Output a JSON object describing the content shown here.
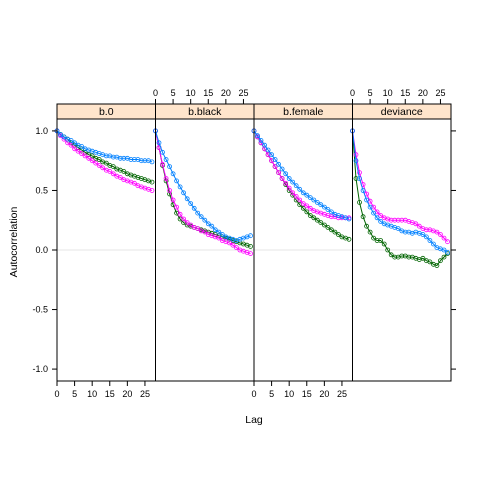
{
  "chart_data": {
    "type": "line",
    "xlabel": "Lag",
    "ylabel": "Autocorrelation",
    "xlim": [
      0,
      28
    ],
    "ylim": [
      -1.1,
      1.1
    ],
    "x_ticks": [
      0,
      5,
      10,
      15,
      20,
      25
    ],
    "y_ticks": [
      -1.0,
      -0.5,
      0.0,
      0.5,
      1.0
    ],
    "y_tick_labels": [
      "-1.0",
      "-0.5",
      "0.0",
      "0.5",
      "1.0"
    ],
    "zero_reference_line": true,
    "strip_color": "#ffe5cc",
    "series_colors": [
      "#0080ff",
      "#ff00ff",
      "#006400"
    ],
    "marker": "open-circle",
    "lags": [
      0,
      1,
      2,
      3,
      4,
      5,
      6,
      7,
      8,
      9,
      10,
      11,
      12,
      13,
      14,
      15,
      16,
      17,
      18,
      19,
      20,
      21,
      22,
      23,
      24,
      25,
      26,
      27
    ],
    "panels": [
      {
        "name": "b.0",
        "series": [
          {
            "values": [
              1.0,
              0.97,
              0.95,
              0.93,
              0.92,
              0.9,
              0.88,
              0.87,
              0.85,
              0.84,
              0.83,
              0.82,
              0.81,
              0.8,
              0.79,
              0.79,
              0.78,
              0.78,
              0.77,
              0.77,
              0.77,
              0.76,
              0.76,
              0.76,
              0.75,
              0.75,
              0.75,
              0.74
            ]
          },
          {
            "values": [
              1.0,
              0.96,
              0.93,
              0.9,
              0.88,
              0.85,
              0.83,
              0.81,
              0.79,
              0.77,
              0.75,
              0.73,
              0.71,
              0.69,
              0.67,
              0.66,
              0.64,
              0.62,
              0.61,
              0.59,
              0.58,
              0.57,
              0.56,
              0.54,
              0.53,
              0.52,
              0.51,
              0.5
            ]
          },
          {
            "values": [
              1.0,
              0.97,
              0.95,
              0.93,
              0.9,
              0.88,
              0.86,
              0.84,
              0.82,
              0.8,
              0.79,
              0.77,
              0.76,
              0.74,
              0.73,
              0.71,
              0.7,
              0.68,
              0.67,
              0.66,
              0.64,
              0.63,
              0.62,
              0.61,
              0.6,
              0.59,
              0.58,
              0.57
            ]
          }
        ]
      },
      {
        "name": "b.black",
        "series": [
          {
            "values": [
              1.0,
              0.9,
              0.82,
              0.76,
              0.7,
              0.64,
              0.58,
              0.53,
              0.48,
              0.43,
              0.39,
              0.35,
              0.31,
              0.28,
              0.25,
              0.22,
              0.2,
              0.17,
              0.15,
              0.13,
              0.11,
              0.1,
              0.09,
              0.08,
              0.09,
              0.1,
              0.11,
              0.12
            ]
          },
          {
            "values": [
              1.0,
              0.86,
              0.72,
              0.6,
              0.5,
              0.42,
              0.36,
              0.3,
              0.26,
              0.23,
              0.21,
              0.19,
              0.18,
              0.16,
              0.15,
              0.13,
              0.12,
              0.11,
              0.1,
              0.08,
              0.07,
              0.06,
              0.04,
              0.02,
              0.0,
              -0.01,
              -0.02,
              -0.03
            ]
          },
          {
            "values": [
              1.0,
              0.86,
              0.71,
              0.58,
              0.47,
              0.38,
              0.31,
              0.26,
              0.23,
              0.21,
              0.2,
              0.19,
              0.18,
              0.17,
              0.16,
              0.15,
              0.14,
              0.13,
              0.12,
              0.11,
              0.1,
              0.09,
              0.08,
              0.07,
              0.06,
              0.05,
              0.04,
              0.03
            ]
          }
        ]
      },
      {
        "name": "b.female",
        "series": [
          {
            "values": [
              1.0,
              0.96,
              0.92,
              0.88,
              0.84,
              0.8,
              0.76,
              0.72,
              0.68,
              0.64,
              0.6,
              0.57,
              0.54,
              0.51,
              0.48,
              0.46,
              0.44,
              0.42,
              0.4,
              0.38,
              0.36,
              0.34,
              0.32,
              0.3,
              0.29,
              0.28,
              0.27,
              0.26
            ]
          },
          {
            "values": [
              1.0,
              0.95,
              0.9,
              0.85,
              0.8,
              0.75,
              0.7,
              0.65,
              0.6,
              0.56,
              0.52,
              0.48,
              0.45,
              0.42,
              0.39,
              0.37,
              0.35,
              0.33,
              0.32,
              0.31,
              0.3,
              0.29,
              0.28,
              0.28,
              0.27,
              0.27,
              0.27,
              0.27
            ]
          },
          {
            "values": [
              1.0,
              0.95,
              0.9,
              0.85,
              0.8,
              0.75,
              0.7,
              0.65,
              0.6,
              0.55,
              0.5,
              0.46,
              0.42,
              0.38,
              0.35,
              0.32,
              0.29,
              0.27,
              0.25,
              0.23,
              0.21,
              0.19,
              0.17,
              0.15,
              0.13,
              0.11,
              0.1,
              0.09
            ]
          }
        ]
      },
      {
        "name": "deviance",
        "series": [
          {
            "values": [
              1.0,
              0.75,
              0.6,
              0.5,
              0.42,
              0.36,
              0.31,
              0.27,
              0.24,
              0.22,
              0.21,
              0.2,
              0.19,
              0.18,
              0.16,
              0.15,
              0.15,
              0.14,
              0.15,
              0.14,
              0.13,
              0.11,
              0.08,
              0.05,
              0.02,
              0.01,
              0.0,
              -0.02
            ]
          },
          {
            "values": [
              1.0,
              0.8,
              0.65,
              0.55,
              0.47,
              0.41,
              0.36,
              0.32,
              0.29,
              0.27,
              0.26,
              0.25,
              0.25,
              0.25,
              0.25,
              0.25,
              0.24,
              0.23,
              0.22,
              0.2,
              0.18,
              0.17,
              0.17,
              0.16,
              0.15,
              0.13,
              0.1,
              0.07
            ]
          },
          {
            "values": [
              1.0,
              0.6,
              0.4,
              0.28,
              0.2,
              0.15,
              0.1,
              0.08,
              0.08,
              0.05,
              0.0,
              -0.04,
              -0.06,
              -0.06,
              -0.05,
              -0.05,
              -0.06,
              -0.06,
              -0.07,
              -0.08,
              -0.07,
              -0.09,
              -0.1,
              -0.12,
              -0.13,
              -0.09,
              -0.06,
              -0.03
            ]
          }
        ]
      }
    ]
  }
}
